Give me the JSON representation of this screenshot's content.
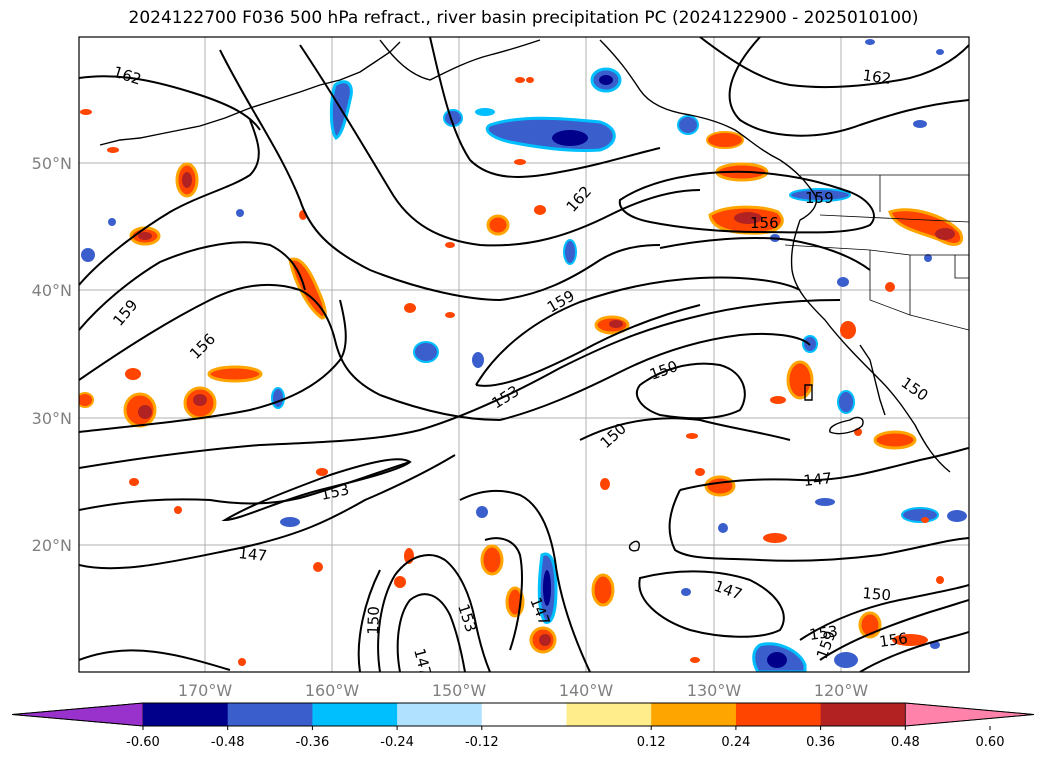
{
  "title": "2024122700 F036 500 hPa refract., river basin precipitation PC (2024122900 - 2025010100)",
  "latitude_labels": [
    "50°N",
    "40°N",
    "30°N",
    "20°N"
  ],
  "longitude_labels": [
    "170°W",
    "160°W",
    "150°W",
    "140°W",
    "130°W",
    "120°W"
  ],
  "contour_labels": [
    "162",
    "162",
    "162",
    "159",
    "159",
    "159",
    "156",
    "156",
    "153",
    "153",
    "153",
    "150",
    "150",
    "150",
    "150",
    "147",
    "147",
    "147",
    "147",
    "150",
    "153",
    "159",
    "156",
    "147"
  ],
  "colorbar": {
    "tick_labels": [
      "-0.60",
      "-0.48",
      "-0.36",
      "-0.24",
      "-0.12",
      "0.12",
      "0.24",
      "0.36",
      "0.48",
      "0.60"
    ],
    "colors": [
      "#9932cc",
      "#00008b",
      "#3a5fcd",
      "#00bfff",
      "#b0e2ff",
      "#ffffff",
      "#ffec8b",
      "#ffa500",
      "#ff4500",
      "#b22222",
      "#ff82ab"
    ]
  },
  "colors": {
    "contour": "#000000",
    "coast": "#000000",
    "grid": "#b0b0b0",
    "tick_text": "#808080"
  }
}
